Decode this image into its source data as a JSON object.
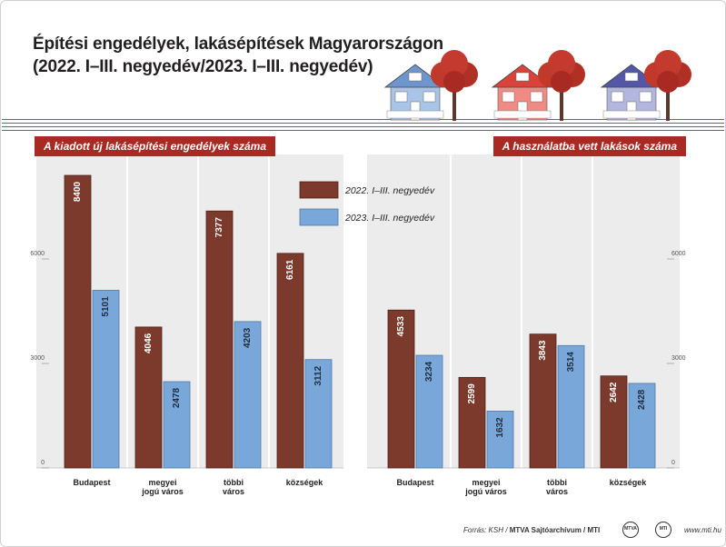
{
  "title_line1": "Építési engedélyek, lakásépítések Magyarországon",
  "title_line2": "(2022. I–III. negyedév/2023. I–III. negyedév)",
  "colors": {
    "series2022": "#7b3a2c",
    "series2023": "#7aa7d9",
    "accent": "#a82a22"
  },
  "chart_data": [
    {
      "type": "bar",
      "title": "A kiadott új lakásépítési engedélyek száma",
      "categories": [
        "Budapest",
        "megyei jogú város",
        "többi város",
        "községek"
      ],
      "categories_lines": [
        [
          "Budapest"
        ],
        [
          "megyei",
          "jogú város"
        ],
        [
          "többi",
          "város"
        ],
        [
          "községek"
        ]
      ],
      "series": [
        {
          "name": "2022. I–III. negyedév",
          "values": [
            8400,
            4046,
            7377,
            6161
          ]
        },
        {
          "name": "2023. I–III. negyedév",
          "values": [
            5101,
            2478,
            4203,
            3112
          ]
        }
      ],
      "yticks": [
        0,
        3000,
        6000
      ],
      "ylim": [
        0,
        9000
      ],
      "axis_side": "left",
      "legend": "top-right"
    },
    {
      "type": "bar",
      "title": "A használatba vett lakások száma",
      "categories": [
        "Budapest",
        "megyei jogú város",
        "többi város",
        "községek"
      ],
      "categories_lines": [
        [
          "Budapest"
        ],
        [
          "megyei",
          "jogú város"
        ],
        [
          "többi",
          "város"
        ],
        [
          "községek"
        ]
      ],
      "series": [
        {
          "name": "2022. I–III. negyedév",
          "values": [
            4533,
            2599,
            3843,
            2642
          ]
        },
        {
          "name": "2023. I–III. negyedév",
          "values": [
            3234,
            1632,
            3514,
            2428
          ]
        }
      ],
      "yticks": [
        0,
        3000,
        6000
      ],
      "ylim": [
        0,
        9000
      ],
      "axis_side": "right"
    }
  ],
  "footer": {
    "source": "Forrás: KSH / ",
    "credit": "MTVA Sajtóarchívum / MTI",
    "logo1": "MTVA",
    "logo2": "MTI",
    "site": "www.mti.hu"
  }
}
